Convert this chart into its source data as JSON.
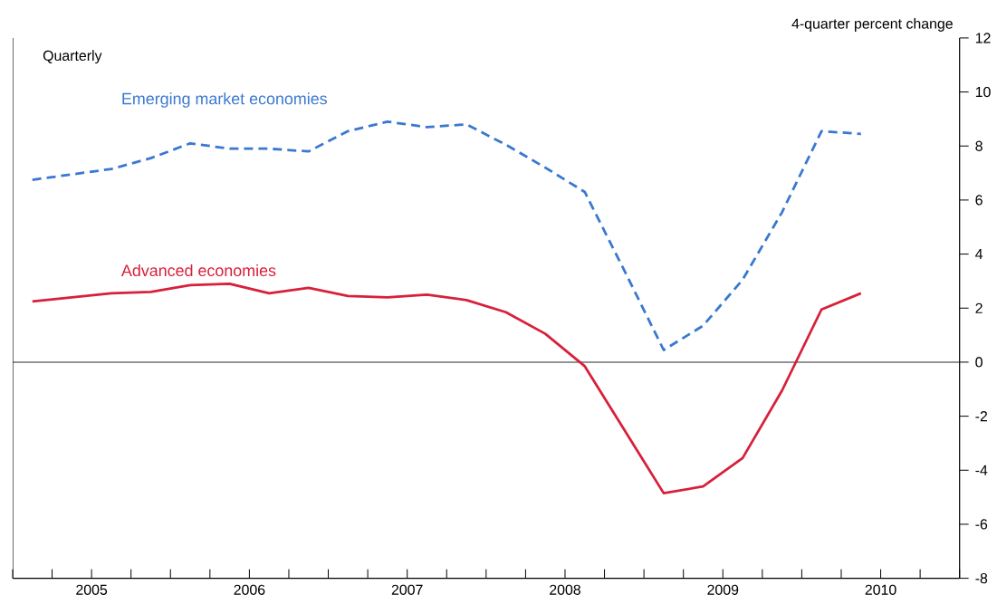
{
  "chart_data": {
    "type": "line",
    "ylabel": "4-quarter percent change",
    "annotations": [
      "Quarterly"
    ],
    "x": [
      2005.125,
      2005.375,
      2005.625,
      2005.875,
      2006.125,
      2006.375,
      2006.625,
      2006.875,
      2007.125,
      2007.375,
      2007.625,
      2007.875,
      2008.125,
      2008.375,
      2008.625,
      2008.875,
      2009.125,
      2009.375,
      2009.625,
      2009.875,
      2010.125,
      2010.375
    ],
    "series": [
      {
        "name": "Emerging market economies",
        "color": "#3a78d0",
        "line_style": "dashed",
        "values": [
          6.75,
          6.95,
          7.15,
          7.55,
          8.1,
          7.9,
          7.9,
          7.8,
          8.55,
          8.9,
          8.7,
          8.8,
          8.05,
          7.2,
          6.3,
          3.4,
          0.45,
          1.35,
          3.05,
          5.55,
          8.55,
          8.45
        ]
      },
      {
        "name": "Advanced economies",
        "color": "#d8203a",
        "line_style": "solid",
        "values": [
          2.25,
          2.4,
          2.55,
          2.6,
          2.85,
          2.9,
          2.55,
          2.75,
          2.45,
          2.4,
          2.5,
          2.3,
          1.85,
          1.05,
          -0.15,
          -2.5,
          -4.85,
          -4.6,
          -3.55,
          -1.05,
          1.95,
          2.55
        ]
      }
    ],
    "xlim": [
      2005,
      2011
    ],
    "xticks": [
      {
        "value": 2005,
        "label": null
      },
      {
        "value": 2005.25,
        "label": null
      },
      {
        "value": 2005.5,
        "label": "2005"
      },
      {
        "value": 2005.75,
        "label": null
      },
      {
        "value": 2006,
        "label": null
      },
      {
        "value": 2006.25,
        "label": null
      },
      {
        "value": 2006.5,
        "label": "2006"
      },
      {
        "value": 2006.75,
        "label": null
      },
      {
        "value": 2007,
        "label": null
      },
      {
        "value": 2007.25,
        "label": null
      },
      {
        "value": 2007.5,
        "label": "2007"
      },
      {
        "value": 2007.75,
        "label": null
      },
      {
        "value": 2008,
        "label": null
      },
      {
        "value": 2008.25,
        "label": null
      },
      {
        "value": 2008.5,
        "label": "2008"
      },
      {
        "value": 2008.75,
        "label": null
      },
      {
        "value": 2009,
        "label": null
      },
      {
        "value": 2009.25,
        "label": null
      },
      {
        "value": 2009.5,
        "label": "2009"
      },
      {
        "value": 2009.75,
        "label": null
      },
      {
        "value": 2010,
        "label": null
      },
      {
        "value": 2010.25,
        "label": null
      },
      {
        "value": 2010.5,
        "label": "2010"
      },
      {
        "value": 2010.75,
        "label": null
      },
      {
        "value": 2011,
        "label": null
      }
    ],
    "ylim": [
      -8,
      12
    ],
    "yticks": [
      -8,
      -6,
      -4,
      -2,
      0,
      2,
      4,
      6,
      8,
      10,
      12
    ],
    "ref_lines": [
      {
        "axis": "y",
        "value": 0,
        "color": "#000000"
      }
    ]
  }
}
